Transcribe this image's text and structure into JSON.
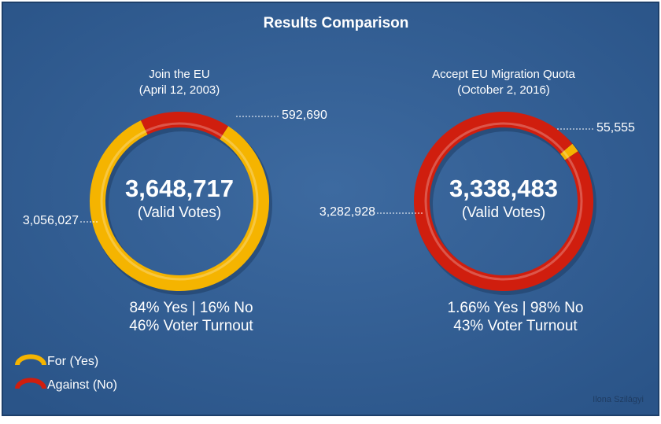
{
  "title": "Results Comparison",
  "credit": "Ilona Szilágyi",
  "chart_data": [
    {
      "type": "donut",
      "title": "Join the EU",
      "subtitle": "(April 12, 2003)",
      "categories": [
        "For (Yes)",
        "Against (No)"
      ],
      "values": [
        3056027,
        592690
      ],
      "value_labels": [
        "3,056,027",
        "592,690"
      ],
      "colors": [
        "#f5b400",
        "#d01e0e"
      ],
      "total": {
        "value": 3648717,
        "label": "3,648,717"
      },
      "total_caption": "(Valid Votes)",
      "notes": [
        "84% Yes | 16% No",
        "46% Voter Turnout"
      ]
    },
    {
      "type": "donut",
      "title": "Accept EU Migration Quota",
      "subtitle": "(October 2, 2016)",
      "categories": [
        "For (Yes)",
        "Against (No)"
      ],
      "values": [
        55555,
        3282928
      ],
      "value_labels": [
        "55,555",
        "3,282,928"
      ],
      "colors": [
        "#f5b400",
        "#d01e0e"
      ],
      "total": {
        "value": 3338483,
        "label": "3,338,483"
      },
      "total_caption": "(Valid Votes)",
      "notes": [
        "1.66% Yes | 98% No",
        "43% Voter Turnout"
      ]
    }
  ]
}
